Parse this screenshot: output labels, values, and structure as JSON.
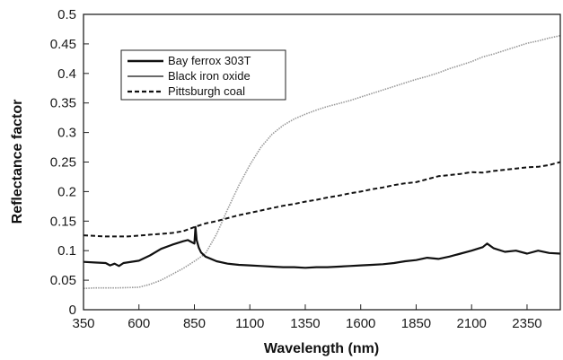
{
  "chart_data": {
    "type": "line",
    "title": "",
    "xlabel": "Wavelength (nm)",
    "ylabel": "Reflectance factor",
    "xlim": [
      350,
      2500
    ],
    "ylim": [
      0,
      0.5
    ],
    "x_ticks": [
      "350",
      "600",
      "850",
      "1100",
      "1350",
      "1600",
      "1850",
      "2100",
      "2350"
    ],
    "y_ticks": [
      "0",
      "0.05",
      "0.1",
      "0.15",
      "0.2",
      "0.25",
      "0.3",
      "0.35",
      "0.4",
      "0.45",
      "0.5"
    ],
    "grid": false,
    "legend_position": "top-left",
    "series": [
      {
        "name": "Bay ferrox 303T",
        "style": "thick-solid",
        "color": "#111111",
        "x": [
          350,
          400,
          450,
          470,
          490,
          510,
          530,
          600,
          650,
          700,
          750,
          800,
          820,
          840,
          850,
          855,
          860,
          870,
          880,
          900,
          950,
          1000,
          1050,
          1100,
          1150,
          1200,
          1250,
          1300,
          1350,
          1400,
          1450,
          1500,
          1550,
          1600,
          1650,
          1700,
          1750,
          1800,
          1850,
          1900,
          1950,
          2000,
          2050,
          2100,
          2150,
          2170,
          2200,
          2250,
          2300,
          2350,
          2400,
          2450,
          2500
        ],
        "y": [
          0.081,
          0.08,
          0.079,
          0.075,
          0.078,
          0.074,
          0.079,
          0.083,
          0.092,
          0.103,
          0.11,
          0.116,
          0.118,
          0.114,
          0.112,
          0.14,
          0.118,
          0.105,
          0.097,
          0.09,
          0.082,
          0.078,
          0.076,
          0.075,
          0.074,
          0.073,
          0.072,
          0.072,
          0.071,
          0.072,
          0.072,
          0.073,
          0.074,
          0.075,
          0.076,
          0.077,
          0.079,
          0.082,
          0.084,
          0.088,
          0.086,
          0.09,
          0.095,
          0.1,
          0.106,
          0.112,
          0.104,
          0.098,
          0.1,
          0.095,
          0.1,
          0.096,
          0.095
        ]
      },
      {
        "name": "Black iron oxide",
        "style": "thin-solid",
        "color": "#999999",
        "x": [
          350,
          400,
          500,
          600,
          650,
          700,
          750,
          800,
          850,
          900,
          950,
          1000,
          1050,
          1100,
          1150,
          1200,
          1250,
          1300,
          1350,
          1400,
          1450,
          1500,
          1550,
          1600,
          1650,
          1700,
          1750,
          1800,
          1850,
          1900,
          1950,
          2000,
          2050,
          2100,
          2150,
          2200,
          2250,
          2300,
          2350,
          2400,
          2450,
          2500
        ],
        "y": [
          0.036,
          0.037,
          0.037,
          0.038,
          0.043,
          0.05,
          0.06,
          0.07,
          0.082,
          0.095,
          0.128,
          0.17,
          0.21,
          0.245,
          0.275,
          0.297,
          0.312,
          0.323,
          0.331,
          0.338,
          0.344,
          0.349,
          0.354,
          0.36,
          0.366,
          0.372,
          0.378,
          0.384,
          0.39,
          0.395,
          0.401,
          0.408,
          0.414,
          0.42,
          0.428,
          0.433,
          0.439,
          0.445,
          0.451,
          0.455,
          0.46,
          0.464
        ]
      },
      {
        "name": "Pittsburgh coal",
        "style": "dashed",
        "color": "#111111",
        "x": [
          350,
          450,
          550,
          650,
          750,
          800,
          850,
          900,
          950,
          1000,
          1050,
          1100,
          1150,
          1200,
          1250,
          1300,
          1350,
          1400,
          1450,
          1500,
          1550,
          1600,
          1650,
          1700,
          1750,
          1800,
          1850,
          1900,
          1950,
          2000,
          2050,
          2100,
          2150,
          2200,
          2250,
          2300,
          2350,
          2400,
          2450,
          2500
        ],
        "y": [
          0.126,
          0.124,
          0.124,
          0.127,
          0.13,
          0.133,
          0.14,
          0.146,
          0.15,
          0.155,
          0.16,
          0.164,
          0.168,
          0.172,
          0.176,
          0.179,
          0.183,
          0.186,
          0.19,
          0.193,
          0.197,
          0.2,
          0.204,
          0.207,
          0.211,
          0.214,
          0.216,
          0.221,
          0.226,
          0.228,
          0.23,
          0.233,
          0.232,
          0.235,
          0.237,
          0.239,
          0.241,
          0.242,
          0.245,
          0.25
        ]
      }
    ]
  }
}
